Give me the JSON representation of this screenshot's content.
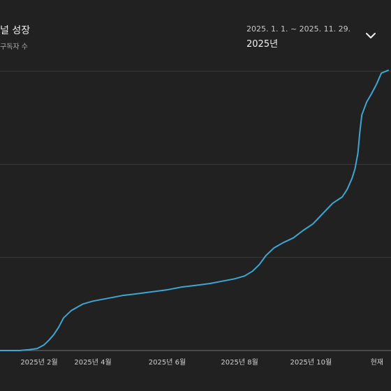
{
  "header": {
    "title": "널 성장",
    "subtitle": "구독자 수",
    "date_range": "2025. 1. 1. ~ 2025. 11. 29.",
    "period_label": "2025년"
  },
  "icons": {
    "expand": "chevron-down-icon"
  },
  "colors": {
    "background": "#212121",
    "line": "#3ea6d2",
    "grid": "#3a3a3a",
    "baseline": "#717171"
  },
  "chart_data": {
    "type": "line",
    "title": "",
    "xlabel": "",
    "ylabel": "",
    "x_ticks": [
      {
        "label": "2025년 2월",
        "day": 40
      },
      {
        "label": "2025년 4월",
        "day": 95
      },
      {
        "label": "2025년 6월",
        "day": 171
      },
      {
        "label": "2025년 8월",
        "day": 245
      },
      {
        "label": "2025년 10월",
        "day": 318
      },
      {
        "label": "현재",
        "day": 392
      }
    ],
    "xlim": [
      0,
      397
    ],
    "ylim": [
      0,
      300
    ],
    "grid": true,
    "legend": "none",
    "series": [
      {
        "x": [
          0,
          20,
          30,
          38,
          45,
          50,
          55,
          60,
          65,
          70,
          73,
          78,
          85,
          95,
          110,
          125,
          140,
          155,
          170,
          185,
          200,
          215,
          225,
          240,
          250,
          258,
          265,
          272,
          280,
          290,
          300,
          310,
          320,
          330,
          340,
          350,
          355,
          360,
          363,
          366,
          368,
          370,
          375,
          380,
          385,
          390,
          397
        ],
        "y": [
          0,
          0,
          1,
          2,
          6,
          11,
          17,
          25,
          35,
          40,
          43,
          46,
          50,
          53,
          56,
          59,
          61,
          63,
          65,
          68,
          70,
          72,
          74,
          77,
          80,
          85,
          92,
          102,
          110,
          116,
          121,
          129,
          136,
          147,
          158,
          165,
          173,
          185,
          195,
          212,
          235,
          253,
          267,
          276,
          286,
          298,
          301
        ]
      }
    ]
  }
}
